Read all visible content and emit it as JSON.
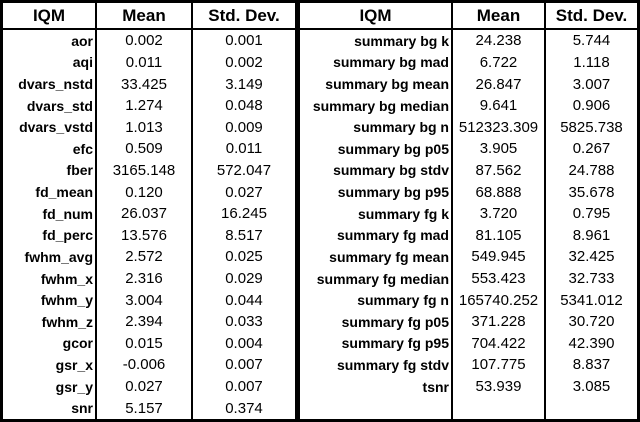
{
  "colors": {
    "border": "#000000",
    "text": "#000000",
    "background": "#ffffff"
  },
  "chart_data": [
    {
      "type": "table",
      "position": "left",
      "columns": [
        "IQM",
        "Mean",
        "Std. Dev."
      ],
      "rows": [
        [
          "aor",
          "0.002",
          "0.001"
        ],
        [
          "aqi",
          "0.011",
          "0.002"
        ],
        [
          "dvars_nstd",
          "33.425",
          "3.149"
        ],
        [
          "dvars_std",
          "1.274",
          "0.048"
        ],
        [
          "dvars_vstd",
          "1.013",
          "0.009"
        ],
        [
          "efc",
          "0.509",
          "0.011"
        ],
        [
          "fber",
          "3165.148",
          "572.047"
        ],
        [
          "fd_mean",
          "0.120",
          "0.027"
        ],
        [
          "fd_num",
          "26.037",
          "16.245"
        ],
        [
          "fd_perc",
          "13.576",
          "8.517"
        ],
        [
          "fwhm_avg",
          "2.572",
          "0.025"
        ],
        [
          "fwhm_x",
          "2.316",
          "0.029"
        ],
        [
          "fwhm_y",
          "3.004",
          "0.044"
        ],
        [
          "fwhm_z",
          "2.394",
          "0.033"
        ],
        [
          "gcor",
          "0.015",
          "0.004"
        ],
        [
          "gsr_x",
          "-0.006",
          "0.007"
        ],
        [
          "gsr_y",
          "0.027",
          "0.007"
        ],
        [
          "snr",
          "5.157",
          "0.374"
        ]
      ]
    },
    {
      "type": "table",
      "position": "right",
      "columns": [
        "IQM",
        "Mean",
        "Std. Dev."
      ],
      "rows": [
        [
          "summary bg k",
          "24.238",
          "5.744"
        ],
        [
          "summary bg mad",
          "6.722",
          "1.118"
        ],
        [
          "summary bg mean",
          "26.847",
          "3.007"
        ],
        [
          "summary bg median",
          "9.641",
          "0.906"
        ],
        [
          "summary bg n",
          "512323.309",
          "5825.738"
        ],
        [
          "summary bg p05",
          "3.905",
          "0.267"
        ],
        [
          "summary bg stdv",
          "87.562",
          "24.788"
        ],
        [
          "summary bg p95",
          "68.888",
          "35.678"
        ],
        [
          "summary fg k",
          "3.720",
          "0.795"
        ],
        [
          "summary fg mad",
          "81.105",
          "8.961"
        ],
        [
          "summary fg mean",
          "549.945",
          "32.425"
        ],
        [
          "summary fg median",
          "553.423",
          "32.733"
        ],
        [
          "summary fg n",
          "165740.252",
          "5341.012"
        ],
        [
          "summary fg p05",
          "371.228",
          "30.720"
        ],
        [
          "summary fg p95",
          "704.422",
          "42.390"
        ],
        [
          "summary fg stdv",
          "107.775",
          "8.837"
        ],
        [
          "tsnr",
          "53.939",
          "3.085"
        ],
        [
          "",
          "",
          ""
        ]
      ]
    }
  ]
}
